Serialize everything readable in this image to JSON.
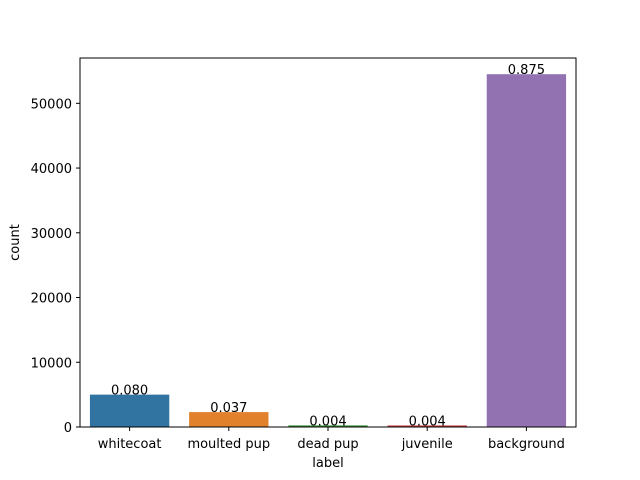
{
  "chart_data": {
    "type": "bar",
    "categories": [
      "whitecoat",
      "moulted pup",
      "dead pup",
      "juvenile",
      "background"
    ],
    "values": [
      5000,
      2300,
      250,
      240,
      54500
    ],
    "data_labels": [
      "0.080",
      "0.037",
      "0.004",
      "0.004",
      "0.875"
    ],
    "colors": [
      "#3274a1",
      "#e1812c",
      "#3a923a",
      "#c03d3e",
      "#9372b2"
    ],
    "xlabel": "label",
    "ylabel": "count",
    "ylim": [
      0,
      57000
    ],
    "yticks": [
      0,
      10000,
      20000,
      30000,
      40000,
      50000
    ],
    "ytick_labels": [
      "0",
      "10000",
      "20000",
      "30000",
      "40000",
      "50000"
    ],
    "grid": false,
    "legend": "none"
  }
}
